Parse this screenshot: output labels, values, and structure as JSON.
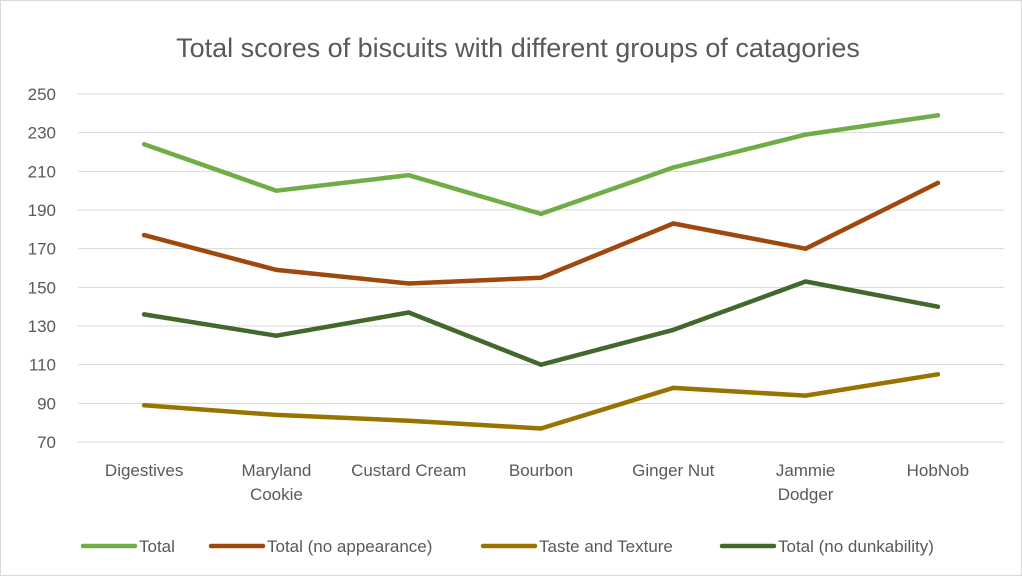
{
  "chart_data": {
    "type": "line",
    "title": "Total scores of biscuits with different groups of catagories",
    "xlabel": "",
    "ylabel": "",
    "categories": [
      [
        "Digestives"
      ],
      [
        "Maryland",
        "Cookie"
      ],
      [
        "Custard Cream"
      ],
      [
        "Bourbon"
      ],
      [
        "Ginger Nut"
      ],
      [
        "Jammie",
        "Dodger"
      ],
      [
        "HobNob"
      ]
    ],
    "ylim": [
      70,
      250
    ],
    "yticks": [
      70,
      90,
      110,
      130,
      150,
      170,
      190,
      210,
      230,
      250
    ],
    "grid": true,
    "legend_position": "bottom",
    "series": [
      {
        "name": "Total",
        "color": "#70ad47",
        "values": [
          224,
          200,
          208,
          188,
          212,
          229,
          239
        ]
      },
      {
        "name": "Total (no appearance)",
        "color": "#9e480e",
        "values": [
          177,
          159,
          152,
          155,
          183,
          170,
          204
        ]
      },
      {
        "name": "Taste and Texture",
        "color": "#997300",
        "values": [
          89,
          84,
          81,
          77,
          98,
          94,
          105
        ]
      },
      {
        "name": "Total (no dunkability)",
        "color": "#43682b",
        "values": [
          136,
          125,
          137,
          110,
          128,
          153,
          140
        ]
      }
    ]
  }
}
